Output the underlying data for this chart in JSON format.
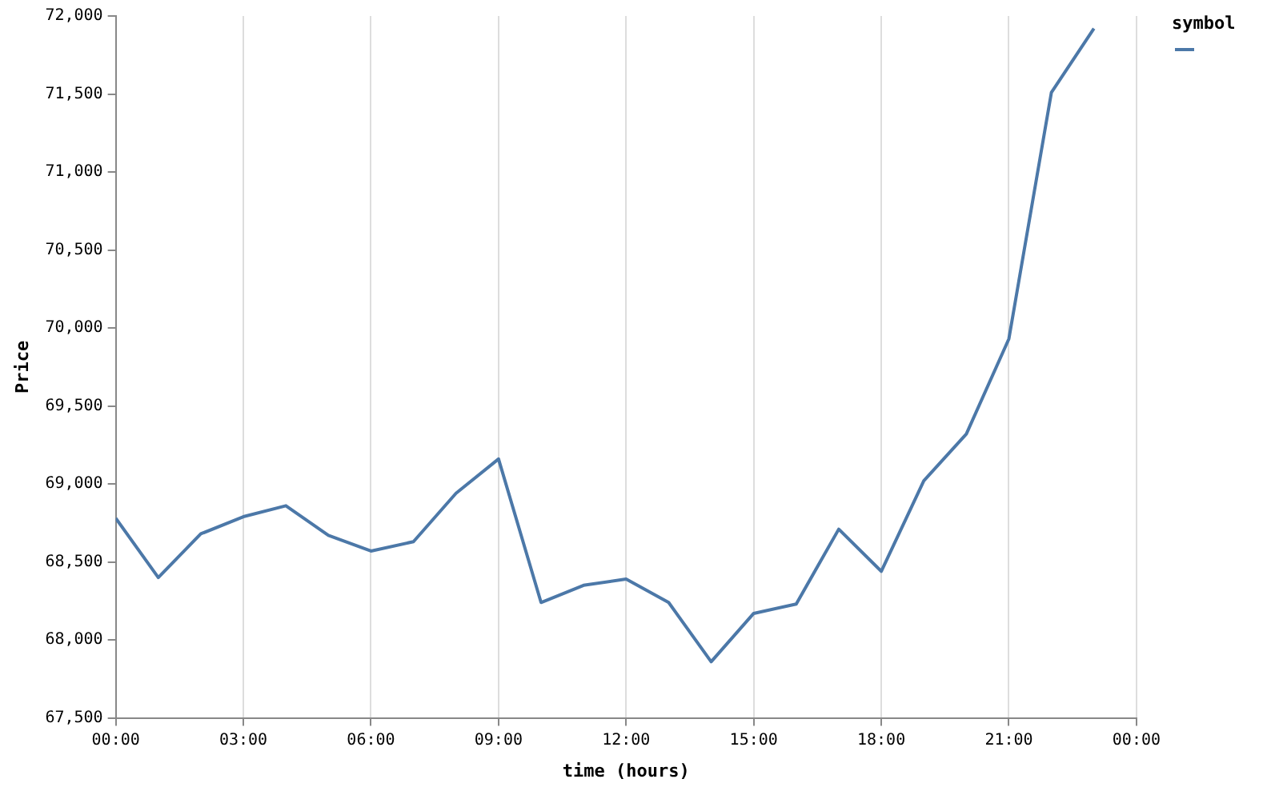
{
  "chart_data": {
    "type": "line",
    "xlabel": "time (hours)",
    "ylabel": "Price",
    "legend_title": "symbol",
    "x": [
      0,
      1,
      2,
      3,
      4,
      5,
      6,
      7,
      8,
      9,
      10,
      11,
      12,
      13,
      14,
      15,
      16,
      17,
      18,
      19,
      20,
      21,
      22,
      23
    ],
    "series": [
      {
        "color": "#4c78a8",
        "values": [
          68780,
          68400,
          68680,
          68790,
          68860,
          68670,
          68570,
          68630,
          68940,
          69160,
          68240,
          68350,
          68390,
          68240,
          67860,
          68170,
          68230,
          68710,
          68440,
          69020,
          69320,
          69930,
          71510,
          71920
        ]
      }
    ],
    "xlim": [
      0,
      24
    ],
    "xticks": [
      {
        "value": 0,
        "label": "00:00"
      },
      {
        "value": 3,
        "label": "03:00"
      },
      {
        "value": 6,
        "label": "06:00"
      },
      {
        "value": 9,
        "label": "09:00"
      },
      {
        "value": 12,
        "label": "12:00"
      },
      {
        "value": 15,
        "label": "15:00"
      },
      {
        "value": 18,
        "label": "18:00"
      },
      {
        "value": 21,
        "label": "21:00"
      },
      {
        "value": 24,
        "label": "00:00"
      }
    ],
    "ylim": [
      67500,
      72000
    ],
    "yticks": [
      {
        "value": 67500,
        "label": "67,500"
      },
      {
        "value": 68000,
        "label": "68,000"
      },
      {
        "value": 68500,
        "label": "68,500"
      },
      {
        "value": 69000,
        "label": "69,000"
      },
      {
        "value": 69500,
        "label": "69,500"
      },
      {
        "value": 70000,
        "label": "70,000"
      },
      {
        "value": 70500,
        "label": "70,500"
      },
      {
        "value": 71000,
        "label": "71,000"
      },
      {
        "value": 71500,
        "label": "71,500"
      },
      {
        "value": 72000,
        "label": "72,000"
      }
    ],
    "grid": "x",
    "marker": "none",
    "line_style": "solid"
  }
}
